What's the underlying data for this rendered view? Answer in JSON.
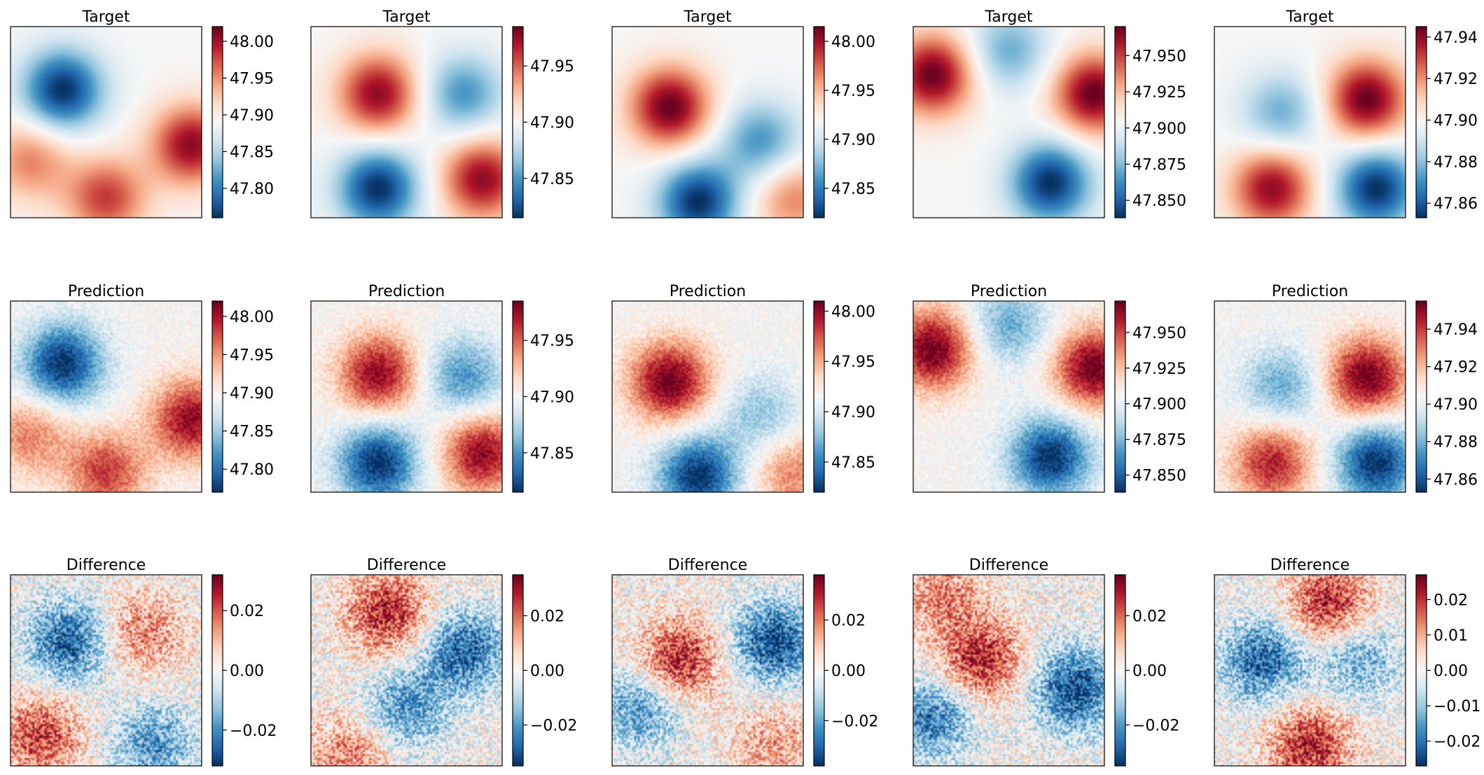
{
  "figure": {
    "colormap": "RdBu_r",
    "colormap_stops": [
      "#053061",
      "#2166ac",
      "#4393c3",
      "#92c5de",
      "#d1e5f0",
      "#f7f7f7",
      "#fddbc7",
      "#f4a582",
      "#d6604d",
      "#b2182b",
      "#67001f"
    ],
    "frame_color": "#000000"
  },
  "chart_data": [
    {
      "type": "heatmap",
      "title": "Target",
      "row": "Target",
      "column": 1,
      "colorbar": {
        "vmin": 47.76,
        "vmax": 48.02,
        "ticks": [
          "47.80",
          "47.85",
          "47.90",
          "47.95",
          "48.00"
        ]
      },
      "field_seed": 11,
      "field_hotspots": [
        {
          "x": 0.27,
          "y": 0.33,
          "v": -1.0
        },
        {
          "x": 0.95,
          "y": 0.62,
          "v": 0.9
        },
        {
          "x": 0.5,
          "y": 0.9,
          "v": 0.7
        },
        {
          "x": 0.1,
          "y": 0.7,
          "v": 0.5
        }
      ]
    },
    {
      "type": "heatmap",
      "title": "Target",
      "row": "Target",
      "column": 2,
      "colorbar": {
        "vmin": 47.815,
        "vmax": 47.985,
        "ticks": [
          "47.85",
          "47.90",
          "47.95"
        ]
      },
      "field_seed": 22,
      "field_hotspots": [
        {
          "x": 0.35,
          "y": 0.35,
          "v": 0.9
        },
        {
          "x": 0.35,
          "y": 0.85,
          "v": -1.0
        },
        {
          "x": 0.9,
          "y": 0.8,
          "v": 0.9
        },
        {
          "x": 0.8,
          "y": 0.35,
          "v": -0.6
        }
      ]
    },
    {
      "type": "heatmap",
      "title": "Target",
      "row": "Target",
      "column": 3,
      "colorbar": {
        "vmin": 47.82,
        "vmax": 48.015,
        "ticks": [
          "47.85",
          "47.90",
          "47.95",
          "48.00"
        ]
      },
      "field_seed": 33,
      "field_hotspots": [
        {
          "x": 0.3,
          "y": 0.42,
          "v": 1.0
        },
        {
          "x": 0.45,
          "y": 0.92,
          "v": -1.0
        },
        {
          "x": 0.78,
          "y": 0.6,
          "v": -0.6
        },
        {
          "x": 0.95,
          "y": 0.9,
          "v": 0.5
        }
      ]
    },
    {
      "type": "heatmap",
      "title": "Target",
      "row": "Target",
      "column": 4,
      "colorbar": {
        "vmin": 47.838,
        "vmax": 47.97,
        "ticks": [
          "47.850",
          "47.875",
          "47.900",
          "47.925",
          "47.950"
        ]
      },
      "field_seed": 44,
      "field_hotspots": [
        {
          "x": 0.1,
          "y": 0.25,
          "v": 1.0
        },
        {
          "x": 0.95,
          "y": 0.35,
          "v": 1.0
        },
        {
          "x": 0.72,
          "y": 0.82,
          "v": -1.0
        },
        {
          "x": 0.5,
          "y": 0.12,
          "v": -0.5
        }
      ]
    },
    {
      "type": "heatmap",
      "title": "Target",
      "row": "Target",
      "column": 5,
      "colorbar": {
        "vmin": 47.853,
        "vmax": 47.945,
        "ticks": [
          "47.86",
          "47.88",
          "47.90",
          "47.92",
          "47.94"
        ]
      },
      "field_seed": 55,
      "field_hotspots": [
        {
          "x": 0.8,
          "y": 0.38,
          "v": 1.0
        },
        {
          "x": 0.3,
          "y": 0.85,
          "v": 0.9
        },
        {
          "x": 0.85,
          "y": 0.85,
          "v": -1.0
        },
        {
          "x": 0.35,
          "y": 0.45,
          "v": -0.5
        }
      ]
    },
    {
      "type": "heatmap",
      "title": "Prediction",
      "row": "Prediction",
      "column": 1,
      "colorbar": {
        "vmin": 47.77,
        "vmax": 48.02,
        "ticks": [
          "47.80",
          "47.85",
          "47.90",
          "47.95",
          "48.00"
        ]
      },
      "field_seed": 11,
      "field_hotspots": [
        {
          "x": 0.27,
          "y": 0.33,
          "v": -1.0
        },
        {
          "x": 0.95,
          "y": 0.62,
          "v": 0.9
        },
        {
          "x": 0.5,
          "y": 0.9,
          "v": 0.7
        },
        {
          "x": 0.1,
          "y": 0.7,
          "v": 0.5
        }
      ]
    },
    {
      "type": "heatmap",
      "title": "Prediction",
      "row": "Prediction",
      "column": 2,
      "colorbar": {
        "vmin": 47.815,
        "vmax": 47.985,
        "ticks": [
          "47.85",
          "47.90",
          "47.95"
        ]
      },
      "field_seed": 22,
      "field_hotspots": [
        {
          "x": 0.35,
          "y": 0.38,
          "v": 0.9
        },
        {
          "x": 0.35,
          "y": 0.85,
          "v": -1.0
        },
        {
          "x": 0.9,
          "y": 0.8,
          "v": 0.9
        },
        {
          "x": 0.8,
          "y": 0.4,
          "v": -0.6
        }
      ]
    },
    {
      "type": "heatmap",
      "title": "Prediction",
      "row": "Prediction",
      "column": 3,
      "colorbar": {
        "vmin": 47.82,
        "vmax": 48.01,
        "ticks": [
          "47.85",
          "47.90",
          "47.95",
          "48.00"
        ]
      },
      "field_seed": 33,
      "field_hotspots": [
        {
          "x": 0.3,
          "y": 0.42,
          "v": 1.0
        },
        {
          "x": 0.45,
          "y": 0.92,
          "v": -1.0
        },
        {
          "x": 0.78,
          "y": 0.6,
          "v": -0.4
        },
        {
          "x": 0.95,
          "y": 0.9,
          "v": 0.5
        }
      ]
    },
    {
      "type": "heatmap",
      "title": "Prediction",
      "row": "Prediction",
      "column": 4,
      "colorbar": {
        "vmin": 47.838,
        "vmax": 47.972,
        "ticks": [
          "47.850",
          "47.875",
          "47.900",
          "47.925",
          "47.950"
        ]
      },
      "field_seed": 44,
      "field_hotspots": [
        {
          "x": 0.1,
          "y": 0.25,
          "v": 1.0
        },
        {
          "x": 0.95,
          "y": 0.35,
          "v": 1.0
        },
        {
          "x": 0.72,
          "y": 0.82,
          "v": -1.0
        },
        {
          "x": 0.5,
          "y": 0.12,
          "v": -0.5
        }
      ]
    },
    {
      "type": "heatmap",
      "title": "Prediction",
      "row": "Prediction",
      "column": 5,
      "colorbar": {
        "vmin": 47.853,
        "vmax": 47.955,
        "ticks": [
          "47.86",
          "47.88",
          "47.90",
          "47.92",
          "47.94"
        ]
      },
      "field_seed": 55,
      "field_hotspots": [
        {
          "x": 0.8,
          "y": 0.4,
          "v": 1.0
        },
        {
          "x": 0.3,
          "y": 0.85,
          "v": 0.8
        },
        {
          "x": 0.85,
          "y": 0.85,
          "v": -1.0
        },
        {
          "x": 0.35,
          "y": 0.45,
          "v": -0.5
        }
      ]
    },
    {
      "type": "heatmap",
      "title": "Difference",
      "row": "Difference",
      "column": 1,
      "colorbar": {
        "vmin": -0.032,
        "vmax": 0.032,
        "ticks": [
          "−0.02",
          "0.00",
          "0.02"
        ]
      },
      "field_seed": 66,
      "field_hotspots": [
        {
          "x": 0.3,
          "y": 0.35,
          "v": -0.8
        },
        {
          "x": 0.15,
          "y": 0.85,
          "v": 0.7
        },
        {
          "x": 0.7,
          "y": 0.3,
          "v": 0.5
        },
        {
          "x": 0.75,
          "y": 0.9,
          "v": -0.6
        }
      ]
    },
    {
      "type": "heatmap",
      "title": "Difference",
      "row": "Difference",
      "column": 2,
      "colorbar": {
        "vmin": -0.035,
        "vmax": 0.035,
        "ticks": [
          "−0.02",
          "0.00",
          "0.02"
        ]
      },
      "field_seed": 77,
      "field_hotspots": [
        {
          "x": 0.4,
          "y": 0.2,
          "v": 0.8
        },
        {
          "x": 0.8,
          "y": 0.4,
          "v": -0.8
        },
        {
          "x": 0.5,
          "y": 0.7,
          "v": -0.6
        },
        {
          "x": 0.2,
          "y": 0.95,
          "v": 0.5
        }
      ]
    },
    {
      "type": "heatmap",
      "title": "Difference",
      "row": "Difference",
      "column": 3,
      "colorbar": {
        "vmin": -0.038,
        "vmax": 0.038,
        "ticks": [
          "−0.02",
          "0.00",
          "0.02"
        ]
      },
      "field_seed": 88,
      "field_hotspots": [
        {
          "x": 0.35,
          "y": 0.45,
          "v": 0.8
        },
        {
          "x": 0.85,
          "y": 0.35,
          "v": -0.9
        },
        {
          "x": 0.15,
          "y": 0.7,
          "v": -0.6
        },
        {
          "x": 0.85,
          "y": 0.9,
          "v": 0.4
        }
      ]
    },
    {
      "type": "heatmap",
      "title": "Difference",
      "row": "Difference",
      "column": 4,
      "colorbar": {
        "vmin": -0.035,
        "vmax": 0.035,
        "ticks": [
          "−0.02",
          "0.00",
          "0.02"
        ]
      },
      "field_seed": 99,
      "field_hotspots": [
        {
          "x": 0.35,
          "y": 0.45,
          "v": 0.8
        },
        {
          "x": 0.85,
          "y": 0.6,
          "v": -0.9
        },
        {
          "x": 0.1,
          "y": 0.75,
          "v": -0.7
        },
        {
          "x": 0.15,
          "y": 0.1,
          "v": 0.5
        }
      ]
    },
    {
      "type": "heatmap",
      "title": "Difference",
      "row": "Difference",
      "column": 5,
      "colorbar": {
        "vmin": -0.027,
        "vmax": 0.027,
        "ticks": [
          "−0.02",
          "−0.01",
          "0.00",
          "0.01",
          "0.02"
        ]
      },
      "field_seed": 111,
      "field_hotspots": [
        {
          "x": 0.6,
          "y": 0.15,
          "v": 0.8
        },
        {
          "x": 0.25,
          "y": 0.45,
          "v": -0.8
        },
        {
          "x": 0.5,
          "y": 0.9,
          "v": 0.8
        },
        {
          "x": 0.75,
          "y": 0.45,
          "v": -0.5
        }
      ]
    }
  ]
}
